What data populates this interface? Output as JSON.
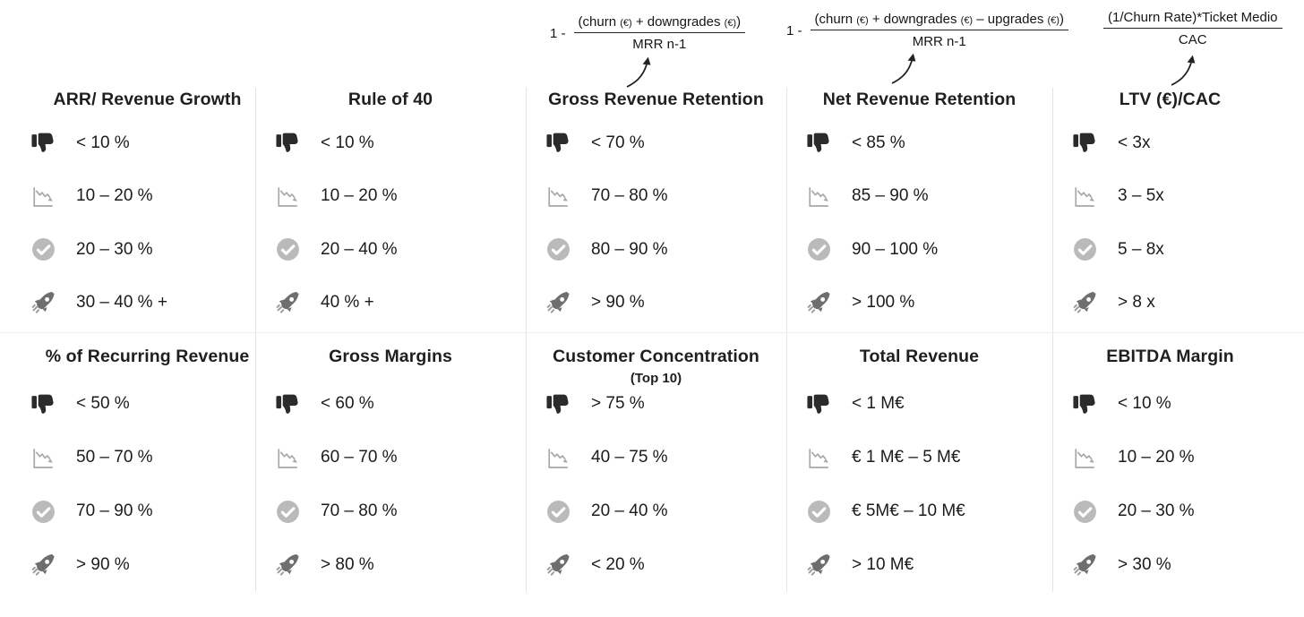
{
  "colors": {
    "background": "#ffffff",
    "bad_icon": "#2b2b2b",
    "warning_icon": "#a8a8a8",
    "good_icon": "#bababa",
    "excellent_icon": "#6e6e6e",
    "text": "#1b1b1b",
    "divider": "#e4e4e4"
  },
  "tier_icons": [
    {
      "name": "thumbs-down-icon",
      "meaning": "bad"
    },
    {
      "name": "declining-chart-icon",
      "meaning": "below average"
    },
    {
      "name": "check-circle-icon",
      "meaning": "good"
    },
    {
      "name": "rocket-icon",
      "meaning": "excellent"
    }
  ],
  "formulas": [
    {
      "prefix": "1 -",
      "numerator": "(churn (€) + downgrades (€))",
      "denominator": "MRR n-1",
      "points_to": "Gross Revenue Retention"
    },
    {
      "prefix": "1 -",
      "numerator": "(churn (€) + downgrades (€) – upgrades (€))",
      "denominator": "MRR n-1",
      "points_to": "Net Revenue Retention"
    },
    {
      "prefix": "",
      "numerator": "(1/Churn Rate)*Ticket Medio",
      "denominator": "CAC",
      "points_to": "LTV (€)/CAC"
    }
  ],
  "metrics": [
    {
      "title": "ARR/ Revenue Growth",
      "tiers": [
        "< 10 %",
        "10 – 20 %",
        "20 – 30 %",
        "30 – 40 % +"
      ]
    },
    {
      "title": "Rule of 40",
      "tiers": [
        "< 10 %",
        "10 – 20 %",
        "20 – 40 %",
        "40 % +"
      ]
    },
    {
      "title": "Gross Revenue Retention",
      "tiers": [
        "< 70 %",
        "70 – 80 %",
        "80 – 90 %",
        "> 90 %"
      ]
    },
    {
      "title": "Net Revenue Retention",
      "tiers": [
        "< 85 %",
        "85 – 90 %",
        "90 – 100 %",
        "> 100 %"
      ]
    },
    {
      "title": "LTV (€)/CAC",
      "tiers": [
        "< 3x",
        "3 – 5x",
        "5 – 8x",
        "> 8 x"
      ]
    },
    {
      "title": "% of Recurring Revenue",
      "tiers": [
        "< 50 %",
        "50 – 70 %",
        "70 – 90 %",
        "> 90 %"
      ]
    },
    {
      "title": "Gross Margins",
      "tiers": [
        "< 60 %",
        "60 – 70 %",
        "70 – 80 %",
        "> 80 %"
      ]
    },
    {
      "title": "Customer Concentration",
      "subtitle": "(Top 10)",
      "tiers": [
        "> 75 %",
        "40 – 75 %",
        "20 – 40 %",
        "< 20 %"
      ]
    },
    {
      "title": "Total Revenue",
      "tiers": [
        "< 1 M€",
        "€ 1 M€ – 5 M€",
        "€ 5M€ – 10 M€",
        "> 10 M€"
      ]
    },
    {
      "title": "EBITDA Margin",
      "tiers": [
        "< 10 %",
        "10 – 20 %",
        "20 – 30 %",
        "> 30 %"
      ]
    }
  ]
}
